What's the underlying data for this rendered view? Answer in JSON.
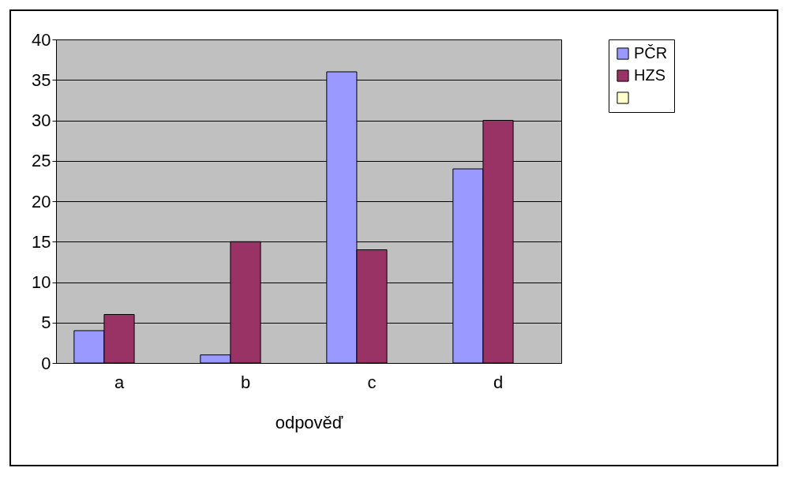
{
  "chart_data": {
    "type": "bar",
    "xlabel": "odpověď",
    "categories": [
      "a",
      "b",
      "c",
      "d"
    ],
    "series": [
      {
        "name": "PČR",
        "color": "#9999ff",
        "values": [
          4,
          1,
          36,
          24
        ]
      },
      {
        "name": "HZS",
        "color": "#993366",
        "values": [
          6,
          15,
          14,
          30
        ]
      },
      {
        "color": "#ffffcc",
        "values": [
          null,
          null,
          null,
          null
        ]
      }
    ],
    "ylim": [
      0,
      40
    ],
    "yticks": [
      0,
      5,
      10,
      15,
      20,
      25,
      30,
      35,
      40
    ],
    "grid": "y",
    "legend": "right"
  }
}
